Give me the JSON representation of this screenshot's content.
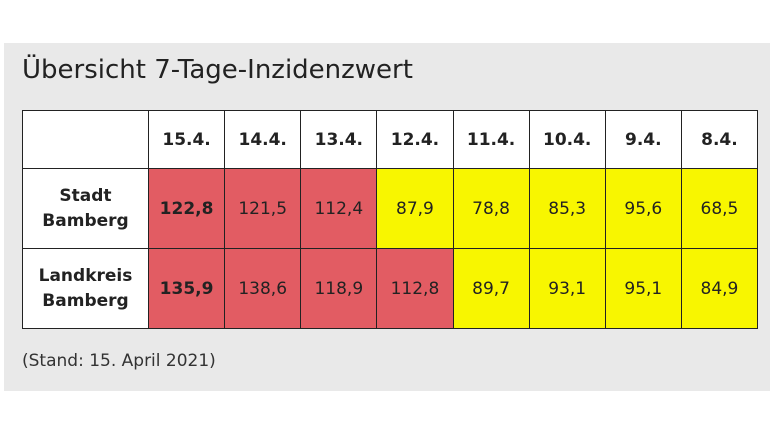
{
  "title": "Übersicht 7-Tage-Inzidenzwert",
  "dates": [
    "15.4.",
    "14.4.",
    "13.4.",
    "12.4.",
    "11.4.",
    "10.4.",
    "9.4.",
    "8.4."
  ],
  "rows": [
    {
      "label_line1": "Stadt",
      "label_line2": "Bamberg",
      "values": [
        "122,8",
        "121,5",
        "112,4",
        "87,9",
        "78,8",
        "85,3",
        "95,6",
        "68,5"
      ],
      "colors": [
        "red",
        "red",
        "red",
        "yellow",
        "yellow",
        "yellow",
        "yellow",
        "yellow"
      ]
    },
    {
      "label_line1": "Landkreis",
      "label_line2": "Bamberg",
      "values": [
        "135,9",
        "138,6",
        "118,9",
        "112,8",
        "89,7",
        "93,1",
        "95,1",
        "84,9"
      ],
      "colors": [
        "red",
        "red",
        "red",
        "red",
        "yellow",
        "yellow",
        "yellow",
        "yellow"
      ]
    }
  ],
  "colors": {
    "red": "#e25c63",
    "yellow": "#f8f600"
  },
  "note": "(Stand: 15. April 2021)"
}
